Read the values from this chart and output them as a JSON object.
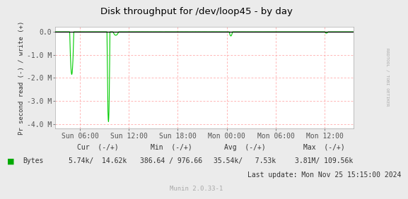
{
  "title": "Disk throughput for /dev/loop45 - by day",
  "ylabel": "Pr second read (-) / write (+)",
  "bg_color": "#EBEBEB",
  "plot_bg_color": "#FFFFFF",
  "grid_color": "#FF9999",
  "line_color": "#00CC00",
  "zero_line_color": "#000000",
  "ytick_labels": [
    "0.0",
    "-1.0 M",
    "-2.0 M",
    "-3.0 M",
    "-4.0 M"
  ],
  "ylim": [
    -4200000,
    220000
  ],
  "xtick_labels": [
    "Sun 06:00",
    "Sun 12:00",
    "Sun 18:00",
    "Mon 00:00",
    "Mon 06:00",
    "Mon 12:00"
  ],
  "legend_label": "Bytes",
  "legend_color": "#00AA00",
  "footer_cur_label": "Cur  (-/+)",
  "footer_min_label": "Min  (-/+)",
  "footer_avg_label": "Avg  (-/+)",
  "footer_max_label": "Max  (-/+)",
  "footer_cur_val": "5.74k/  14.62k",
  "footer_min_val": "386.64 / 976.66",
  "footer_avg_val": "35.54k/   7.53k",
  "footer_max_val": "3.81M/ 109.56k",
  "footer_lastupdate": "Last update: Mon Nov 25 15:15:00 2024",
  "munin_version": "Munin 2.0.33-1",
  "right_label": "RRDTOOL / TOBI OETIKER",
  "total_hours": 36.5,
  "xtick_hours": [
    3,
    9,
    15,
    21,
    27,
    33
  ],
  "ytick_vals": [
    0,
    -1000000,
    -2000000,
    -3000000,
    -4000000
  ]
}
